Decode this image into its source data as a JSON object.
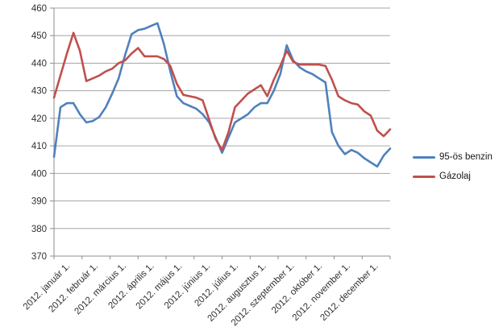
{
  "chart_data": {
    "type": "line",
    "title": "",
    "xlabel": "",
    "ylabel": "",
    "ylim": [
      370,
      460
    ],
    "y_ticks": [
      370,
      380,
      390,
      400,
      410,
      420,
      430,
      440,
      450,
      460
    ],
    "x_tick_labels": [
      "2012. január 1.",
      "2012. február 1.",
      "2012. március 1.",
      "2012. április 1.",
      "2012. május 1.",
      "2012. június 1.",
      "2012. július 1.",
      "2012. augusztus 1.",
      "2012. szeptember 1.",
      "2012. október 1.",
      "2012. november 1.",
      "2012. december 1."
    ],
    "x_sampling": "weekly, 53 points spanning 2012",
    "grid": "horizontal",
    "legend_position": "right",
    "axis_color": "#8c8c8c",
    "gridline_color": "#a6a6a6",
    "text_color": "#303030",
    "series": [
      {
        "name": "95-ös benzin",
        "color": "#4F81BD",
        "values": [
          406,
          424,
          425.5,
          425.5,
          421.5,
          418.5,
          419,
          420.5,
          424,
          429,
          434.5,
          443,
          450.5,
          452,
          452.5,
          453.5,
          454.5,
          447,
          437,
          428,
          425.5,
          424.5,
          423.5,
          421.5,
          418.5,
          413,
          407.5,
          413,
          418.5,
          420,
          421.5,
          424,
          425.5,
          425.5,
          430,
          436,
          446.5,
          441,
          438.5,
          437,
          436,
          434.5,
          433,
          415,
          410,
          407,
          408.5,
          407.5,
          405.5,
          404,
          402.5,
          406.5,
          409
        ]
      },
      {
        "name": "Gázolaj",
        "color": "#C0504D",
        "values": [
          427.5,
          435.5,
          443.5,
          451,
          444.5,
          433.5,
          434.5,
          435.5,
          437,
          438,
          440,
          441,
          443.5,
          445.5,
          442.5,
          442.5,
          442.5,
          441.5,
          439,
          432.5,
          428.5,
          428,
          427.5,
          426.5,
          419.5,
          412.5,
          408.5,
          415,
          424,
          426.5,
          429,
          430.5,
          432,
          428,
          434,
          439,
          444.5,
          440.5,
          439.5,
          439.5,
          439.5,
          439.5,
          439,
          434,
          428,
          426.5,
          425.5,
          425,
          422.5,
          421,
          415.5,
          413.5,
          416
        ]
      }
    ]
  }
}
